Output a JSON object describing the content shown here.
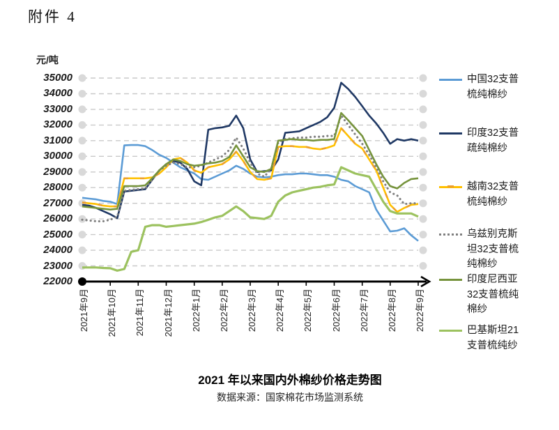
{
  "page": {
    "attachment_label": "附件 4",
    "unit_label": "元/吨",
    "title": "2021 年以来国内外棉纱价格走势图",
    "source": "数据来源：国家棉花市场监测系统"
  },
  "chart_data": {
    "type": "line",
    "title": "2021 年以来国内外棉纱价格走势图",
    "ylabel": "元/吨",
    "ylim": [
      22000,
      35000
    ],
    "y_tick_step": 1000,
    "y_ticks": [
      35000,
      34000,
      33000,
      32000,
      31000,
      30000,
      29000,
      28000,
      27000,
      26000,
      25000,
      24000,
      23000,
      22000
    ],
    "x_tick_labels": [
      "2021年9月",
      "2021年10月",
      "2021年11月",
      "2021年12月",
      "2022年1月",
      "2022年2月",
      "2022年3月",
      "2022年4月",
      "2022年5月",
      "2022年6月",
      "2022年7月",
      "2022年8月",
      "2022年9月"
    ],
    "x_step_months": 0.25,
    "grid": "horizontal dashed with endpoint dots",
    "legend_position": "right",
    "axis_color": "#000000",
    "grid_color": "#C9C9C9",
    "grid_dot_color": "#D9D9D9",
    "series": [
      {
        "name": "中国32支普梳纯棉纱",
        "label_wrapped": "中国32支普\n梳纯棉纱",
        "color": "#5B9BD5",
        "style": "solid",
        "values": [
          27350,
          27300,
          27250,
          27150,
          27100,
          26950,
          30700,
          30720,
          30720,
          30650,
          30400,
          30100,
          29900,
          29600,
          29300,
          29100,
          28900,
          28550,
          28500,
          28700,
          28900,
          29100,
          29400,
          29200,
          28900,
          28700,
          28650,
          28700,
          28800,
          28850,
          28850,
          28900,
          28900,
          28850,
          28800,
          28800,
          28700,
          28500,
          28400,
          28100,
          27900,
          27700,
          26600,
          25900,
          25200,
          25250,
          25400,
          24950,
          24600
        ]
      },
      {
        "name": "印度32支普疏纯棉纱",
        "label_wrapped": "印度32支普\n疏纯棉纱",
        "color": "#1F3864",
        "style": "solid",
        "values": [
          26900,
          26850,
          26700,
          26500,
          26300,
          26050,
          27750,
          27800,
          27850,
          27900,
          28500,
          29100,
          29500,
          29700,
          29600,
          29200,
          28400,
          28150,
          31700,
          31800,
          31850,
          31950,
          32600,
          31800,
          29800,
          29000,
          29050,
          29100,
          29800,
          31500,
          31550,
          31600,
          31800,
          32000,
          32200,
          32500,
          33100,
          34700,
          34300,
          33800,
          33200,
          32600,
          32100,
          31500,
          30800,
          31100,
          31000,
          31100,
          31000
        ]
      },
      {
        "name": "越南32支普梳纯棉纱",
        "label_wrapped": "越南32支普\n梳纯棉纱",
        "color": "#FFC000",
        "style": "solid-marker",
        "values": [
          27050,
          27000,
          26950,
          26850,
          26800,
          26800,
          28600,
          28600,
          28600,
          28600,
          28650,
          28900,
          29300,
          29800,
          29900,
          29600,
          29100,
          28950,
          29300,
          29400,
          29500,
          29800,
          30300,
          29700,
          29000,
          28550,
          28500,
          28600,
          30600,
          30650,
          30650,
          30600,
          30600,
          30500,
          30450,
          30550,
          30700,
          31800,
          31300,
          30800,
          30500,
          29800,
          29100,
          28000,
          26900,
          26450,
          26700,
          26900,
          26950
        ]
      },
      {
        "name": "乌兹别克斯坦32支普梳纯棉纱",
        "label_wrapped": "乌兹别克斯\n坦32支普梳\n纯棉纱",
        "color": "#7F7F7F",
        "style": "dotted",
        "values": [
          25950,
          25900,
          25850,
          25850,
          25950,
          26150,
          27800,
          27850,
          27900,
          27950,
          28500,
          29100,
          29400,
          29600,
          29500,
          29300,
          29300,
          29400,
          29600,
          29800,
          30000,
          30400,
          31200,
          30500,
          29600,
          28900,
          28700,
          29200,
          30900,
          31100,
          31150,
          31200,
          31200,
          31250,
          31250,
          31300,
          31300,
          32600,
          32000,
          31400,
          30800,
          30100,
          29300,
          28400,
          27700,
          27500,
          26950,
          27000,
          27000
        ]
      },
      {
        "name": "印度尼西亚32支普梳纯棉纱",
        "label_wrapped": "印度尼西亚\n32支普梳纯\n棉纱",
        "color": "#76933C",
        "style": "solid",
        "values": [
          26800,
          26750,
          26700,
          26650,
          26600,
          26650,
          28100,
          28100,
          28100,
          28150,
          28600,
          29100,
          29500,
          29800,
          29700,
          29500,
          29400,
          29450,
          29550,
          29600,
          29700,
          29950,
          30700,
          30000,
          29300,
          29050,
          29000,
          29200,
          31000,
          31050,
          31100,
          31050,
          31050,
          31000,
          31050,
          31050,
          31100,
          32770,
          32300,
          31800,
          31300,
          30400,
          29500,
          28700,
          28100,
          27950,
          28300,
          28550,
          28600
        ]
      },
      {
        "name": "巴基斯坦21支普梳纯纱",
        "label_wrapped": "巴基斯坦21\n支普梳纯纱",
        "color": "#9CC25F",
        "style": "solid",
        "values": [
          22900,
          22900,
          22900,
          22870,
          22850,
          22700,
          22800,
          23900,
          24000,
          25500,
          25600,
          25600,
          25500,
          25550,
          25600,
          25650,
          25700,
          25800,
          25950,
          26100,
          26200,
          26500,
          26800,
          26500,
          26100,
          26050,
          26000,
          26200,
          27100,
          27500,
          27700,
          27800,
          27900,
          28000,
          28050,
          28150,
          28200,
          29300,
          29100,
          28900,
          28800,
          28700,
          27900,
          27100,
          26500,
          26350,
          26350,
          26350,
          26150
        ]
      }
    ]
  }
}
